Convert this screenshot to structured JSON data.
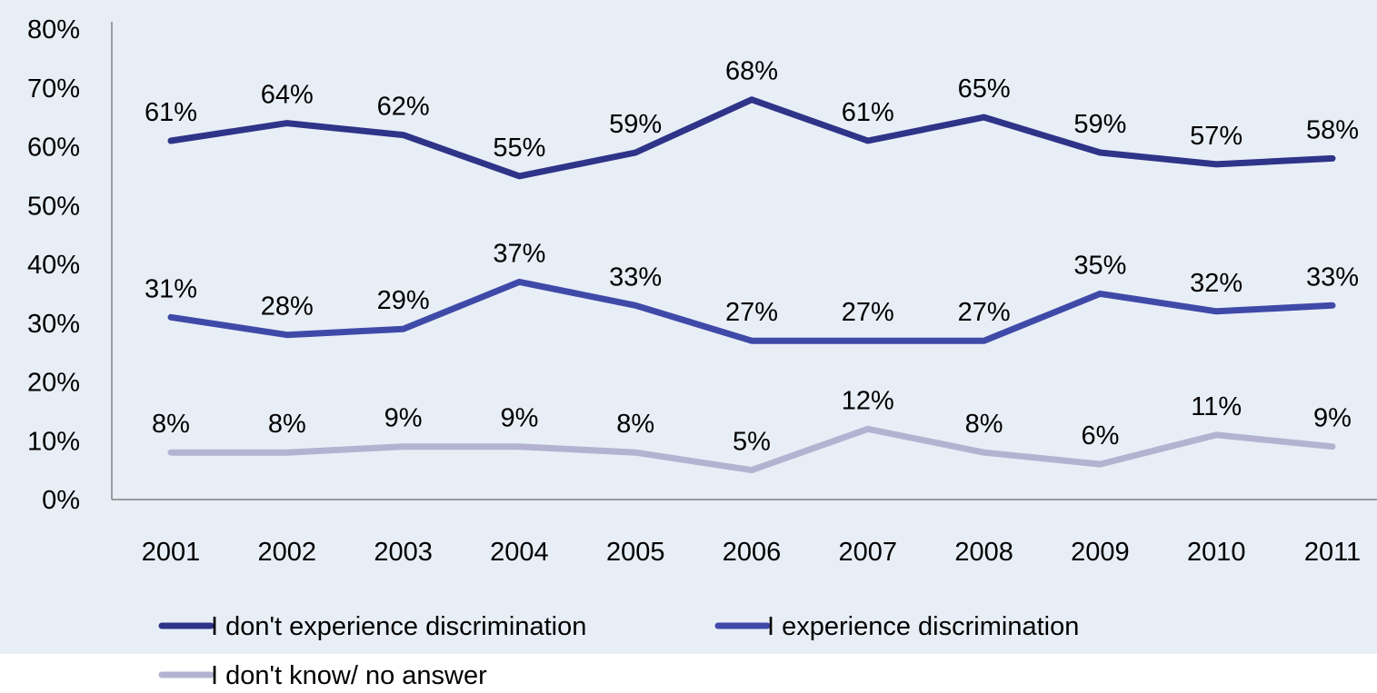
{
  "chart_data": {
    "type": "line",
    "x": [
      "2001",
      "2002",
      "2003",
      "2004",
      "2005",
      "2006",
      "2007",
      "2008",
      "2009",
      "2010",
      "2011"
    ],
    "ylim": [
      0,
      80
    ],
    "yticks": [
      "0%",
      "10%",
      "20%",
      "30%",
      "40%",
      "50%",
      "60%",
      "70%",
      "80%"
    ],
    "ytick_values": [
      0,
      10,
      20,
      30,
      40,
      50,
      60,
      70,
      80
    ],
    "grid": false,
    "legend_position": "bottom",
    "series": [
      {
        "name": "I don't experience discrimination",
        "color": "#2e3488",
        "values": [
          61,
          64,
          62,
          55,
          59,
          68,
          61,
          65,
          59,
          57,
          58
        ],
        "labels": [
          "61%",
          "64%",
          "62%",
          "55%",
          "59%",
          "68%",
          "61%",
          "65%",
          "59%",
          "57%",
          "58%"
        ]
      },
      {
        "name": "I experience discrimination",
        "color": "#3f4aa8",
        "values": [
          31,
          28,
          29,
          37,
          33,
          27,
          27,
          27,
          35,
          32,
          33
        ],
        "labels": [
          "31%",
          "28%",
          "29%",
          "37%",
          "33%",
          "27%",
          "27%",
          "27%",
          "35%",
          "32%",
          "33%"
        ]
      },
      {
        "name": "I don't know/ no answer",
        "color": "#b3b3d1",
        "values": [
          8,
          8,
          9,
          9,
          8,
          5,
          12,
          8,
          6,
          11,
          9
        ],
        "labels": [
          "8%",
          "8%",
          "9%",
          "9%",
          "8%",
          "5%",
          "12%",
          "8%",
          "6%",
          "11%",
          "9%"
        ]
      }
    ]
  },
  "colors": {
    "chart_background": "#e8eef6",
    "axis": "#808080"
  }
}
